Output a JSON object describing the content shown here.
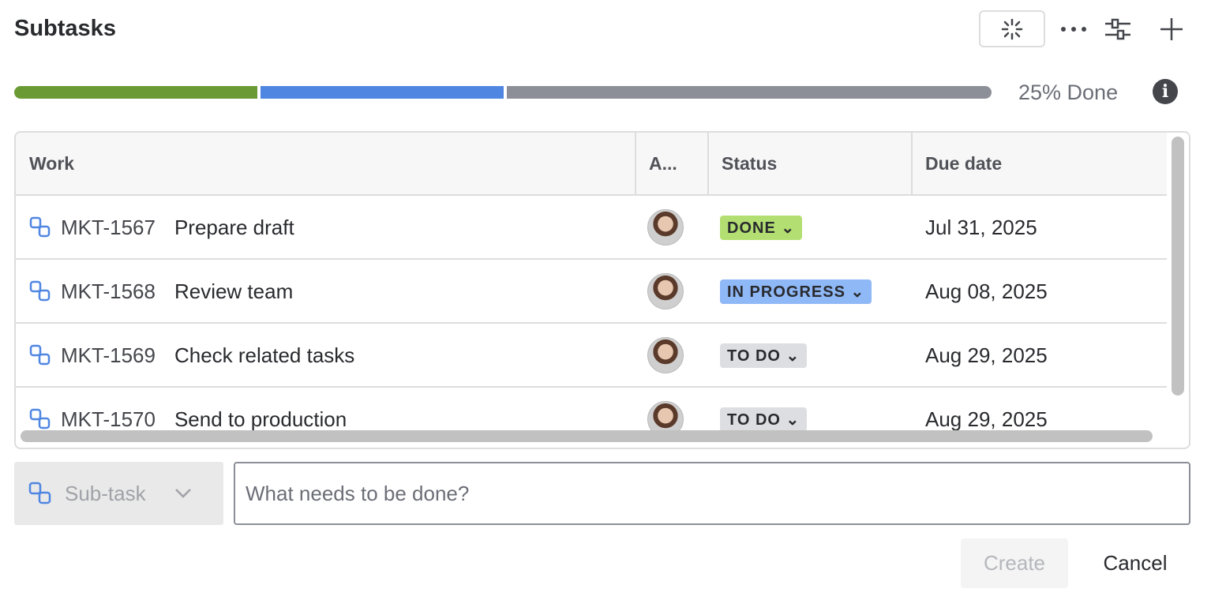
{
  "header": {
    "title": "Subtasks",
    "icons": [
      "ai-sparkle-icon",
      "more-icon",
      "settings-sliders-icon",
      "plus-icon"
    ]
  },
  "progress": {
    "done_percent": 25,
    "in_progress_percent": 25,
    "todo_percent": 50,
    "label": "25% Done",
    "colors": {
      "done": "#6a9a34",
      "in_progress": "#4f86e2",
      "todo": "#8c8f97"
    }
  },
  "table": {
    "columns": [
      "Work",
      "A...",
      "Status",
      "Due date"
    ],
    "rows": [
      {
        "key": "MKT-1567",
        "summary": "Prepare draft",
        "status": "DONE",
        "status_color": "#b3df72",
        "due": "Jul 31, 2025"
      },
      {
        "key": "MKT-1568",
        "summary": "Review team",
        "status": "IN PROGRESS",
        "status_color": "#8fb8f6",
        "due": "Aug 08, 2025"
      },
      {
        "key": "MKT-1569",
        "summary": "Check related tasks",
        "status": "TO DO",
        "status_color": "#dddee1",
        "due": "Aug 29, 2025"
      },
      {
        "key": "MKT-1570",
        "summary": "Send to production",
        "status": "TO DO",
        "status_color": "#dddee1",
        "due": "Aug 29, 2025"
      }
    ]
  },
  "create_form": {
    "type": "Sub-task",
    "placeholder": "What needs to be done?",
    "create_label": "Create",
    "cancel_label": "Cancel"
  }
}
